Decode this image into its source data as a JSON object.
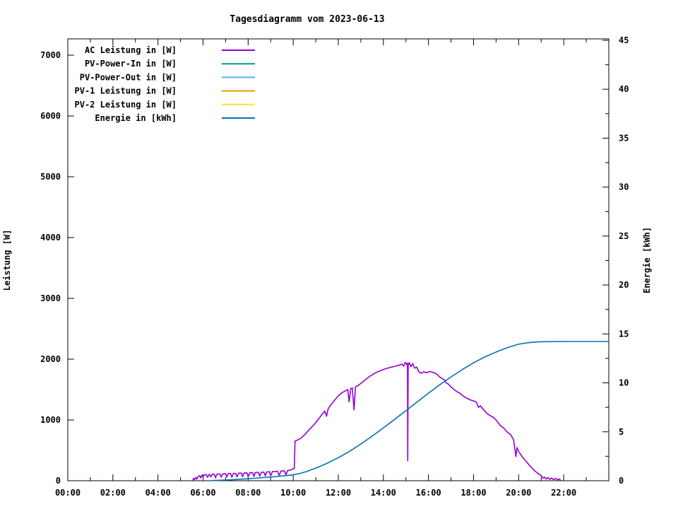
{
  "chart_data": {
    "type": "line",
    "title": "Tagesdiagramm vom 2023-06-13",
    "background_color": "#ffffff",
    "axis_color": "#000000",
    "legend_position": "top-left-inside",
    "x_axis": {
      "range_hours": [
        0,
        24
      ],
      "major_tick_step_hours": 2,
      "minor_tick_step_hours": 1,
      "tick_hours": [
        0,
        2,
        4,
        6,
        8,
        10,
        12,
        14,
        16,
        18,
        20,
        22
      ],
      "tick_labels": [
        "00:00",
        "02:00",
        "04:00",
        "06:00",
        "08:00",
        "10:00",
        "12:00",
        "14:00",
        "16:00",
        "18:00",
        "20:00",
        "22:00"
      ]
    },
    "y_axis": {
      "label": "Leistung [W]",
      "range": [
        0,
        7270
      ],
      "ticks": [
        0,
        1000,
        2000,
        3000,
        4000,
        5000,
        6000,
        7000
      ],
      "tick_labels": [
        "0",
        "1000",
        "2000",
        "3000",
        "4000",
        "5000",
        "6000",
        "7000"
      ]
    },
    "y2_axis": {
      "label": "Energie [kWh]",
      "range": [
        0,
        45.1
      ],
      "ticks": [
        0,
        5,
        10,
        15,
        20,
        25,
        30,
        35,
        40,
        45
      ],
      "tick_labels": [
        "0",
        "5",
        "10",
        "15",
        "20",
        "25",
        "30",
        "35",
        "40",
        "45"
      ],
      "minor_tick_step": 2.5
    },
    "series": [
      {
        "name": "AC Leistung in [W]",
        "color": "#9400D3",
        "axis": "left",
        "points": [
          [
            5.55,
            10
          ],
          [
            5.58,
            40
          ],
          [
            5.62,
            20
          ],
          [
            5.68,
            55
          ],
          [
            5.72,
            25
          ],
          [
            5.78,
            70
          ],
          [
            5.85,
            85
          ],
          [
            5.9,
            45
          ],
          [
            5.95,
            90
          ],
          [
            6.0,
            65
          ],
          [
            6.05,
            95
          ],
          [
            6.15,
            100
          ],
          [
            6.2,
            55
          ],
          [
            6.28,
            105
          ],
          [
            6.35,
            65
          ],
          [
            6.42,
            108
          ],
          [
            6.5,
            104
          ],
          [
            6.55,
            48
          ],
          [
            6.62,
            110
          ],
          [
            6.75,
            112
          ],
          [
            6.8,
            58
          ],
          [
            6.88,
            113
          ],
          [
            7.0,
            116
          ],
          [
            7.05,
            62
          ],
          [
            7.12,
            118
          ],
          [
            7.22,
            119
          ],
          [
            7.28,
            58
          ],
          [
            7.35,
            121
          ],
          [
            7.45,
            120
          ],
          [
            7.5,
            62
          ],
          [
            7.58,
            124
          ],
          [
            7.7,
            125
          ],
          [
            7.75,
            66
          ],
          [
            7.82,
            127
          ],
          [
            7.95,
            129
          ],
          [
            8.0,
            70
          ],
          [
            8.08,
            131
          ],
          [
            8.2,
            133
          ],
          [
            8.26,
            72
          ],
          [
            8.32,
            135
          ],
          [
            8.45,
            137
          ],
          [
            8.52,
            76
          ],
          [
            8.58,
            139
          ],
          [
            8.7,
            141
          ],
          [
            8.76,
            80
          ],
          [
            8.82,
            144
          ],
          [
            8.95,
            147
          ],
          [
            9.0,
            82
          ],
          [
            9.08,
            150
          ],
          [
            9.2,
            152
          ],
          [
            9.3,
            155
          ],
          [
            9.38,
            88
          ],
          [
            9.45,
            158
          ],
          [
            9.6,
            162
          ],
          [
            9.68,
            98
          ],
          [
            9.75,
            166
          ],
          [
            9.85,
            172
          ],
          [
            9.95,
            186
          ],
          [
            10.05,
            205
          ],
          [
            10.08,
            650
          ],
          [
            10.2,
            672
          ],
          [
            10.35,
            700
          ],
          [
            10.5,
            755
          ],
          [
            10.65,
            815
          ],
          [
            10.8,
            872
          ],
          [
            10.95,
            935
          ],
          [
            11.1,
            1005
          ],
          [
            11.25,
            1075
          ],
          [
            11.4,
            1145
          ],
          [
            11.48,
            1060
          ],
          [
            11.55,
            1185
          ],
          [
            11.7,
            1262
          ],
          [
            11.85,
            1330
          ],
          [
            12.0,
            1395
          ],
          [
            12.15,
            1445
          ],
          [
            12.3,
            1475
          ],
          [
            12.42,
            1500
          ],
          [
            12.48,
            1295
          ],
          [
            12.55,
            1515
          ],
          [
            12.62,
            1528
          ],
          [
            12.7,
            1165
          ],
          [
            12.76,
            1540
          ],
          [
            12.9,
            1572
          ],
          [
            13.05,
            1615
          ],
          [
            13.2,
            1660
          ],
          [
            13.35,
            1705
          ],
          [
            13.5,
            1742
          ],
          [
            13.65,
            1775
          ],
          [
            13.8,
            1800
          ],
          [
            13.95,
            1822
          ],
          [
            14.1,
            1842
          ],
          [
            14.25,
            1858
          ],
          [
            14.4,
            1872
          ],
          [
            14.55,
            1885
          ],
          [
            14.7,
            1902
          ],
          [
            14.82,
            1918
          ],
          [
            14.9,
            1885
          ],
          [
            14.97,
            1945
          ],
          [
            15.03,
            1912
          ],
          [
            15.07,
            1935
          ],
          [
            15.08,
            330
          ],
          [
            15.1,
            1898
          ],
          [
            15.15,
            1942
          ],
          [
            15.22,
            1875
          ],
          [
            15.3,
            1928
          ],
          [
            15.38,
            1852
          ],
          [
            15.48,
            1868
          ],
          [
            15.58,
            1788
          ],
          [
            15.68,
            1768
          ],
          [
            15.8,
            1792
          ],
          [
            15.92,
            1775
          ],
          [
            16.05,
            1798
          ],
          [
            16.2,
            1782
          ],
          [
            16.35,
            1760
          ],
          [
            16.5,
            1705
          ],
          [
            16.62,
            1678
          ],
          [
            16.72,
            1655
          ],
          [
            16.78,
            1612
          ],
          [
            16.88,
            1590
          ],
          [
            17.0,
            1542
          ],
          [
            17.15,
            1495
          ],
          [
            17.28,
            1462
          ],
          [
            17.4,
            1438
          ],
          [
            17.52,
            1398
          ],
          [
            17.68,
            1362
          ],
          [
            17.85,
            1330
          ],
          [
            18.0,
            1312
          ],
          [
            18.12,
            1295
          ],
          [
            18.22,
            1205
          ],
          [
            18.3,
            1232
          ],
          [
            18.45,
            1165
          ],
          [
            18.6,
            1105
          ],
          [
            18.75,
            1068
          ],
          [
            18.9,
            1038
          ],
          [
            19.05,
            975
          ],
          [
            19.2,
            905
          ],
          [
            19.35,
            862
          ],
          [
            19.5,
            798
          ],
          [
            19.65,
            758
          ],
          [
            19.78,
            672
          ],
          [
            19.88,
            398
          ],
          [
            19.93,
            545
          ],
          [
            20.0,
            482
          ],
          [
            20.12,
            415
          ],
          [
            20.25,
            352
          ],
          [
            20.38,
            298
          ],
          [
            20.5,
            245
          ],
          [
            20.62,
            198
          ],
          [
            20.75,
            152
          ],
          [
            20.88,
            112
          ],
          [
            21.0,
            88
          ],
          [
            21.08,
            42
          ],
          [
            21.15,
            62
          ],
          [
            21.22,
            28
          ],
          [
            21.3,
            52
          ],
          [
            21.38,
            22
          ],
          [
            21.46,
            45
          ],
          [
            21.55,
            18
          ],
          [
            21.63,
            38
          ],
          [
            21.72,
            15
          ],
          [
            21.8,
            28
          ],
          [
            21.85,
            12
          ]
        ]
      },
      {
        "name": "PV-Power-In in [W]",
        "color": "#009E73",
        "axis": "left",
        "points": []
      },
      {
        "name": "PV-Power-Out in [W]",
        "color": "#56B4E9",
        "axis": "left",
        "points": []
      },
      {
        "name": "PV-1 Leistung in [W]",
        "color": "#E69F00",
        "axis": "left",
        "points": []
      },
      {
        "name": "PV-2 Leistung in [W]",
        "color": "#F0E442",
        "axis": "left",
        "points": []
      },
      {
        "name": "Energie in [kWh]",
        "color": "#0072B2",
        "axis": "right",
        "points": [
          [
            6.4,
            0.02
          ],
          [
            7.0,
            0.07
          ],
          [
            7.5,
            0.13
          ],
          [
            8.0,
            0.2
          ],
          [
            8.5,
            0.29
          ],
          [
            9.0,
            0.38
          ],
          [
            9.5,
            0.48
          ],
          [
            10.0,
            0.6
          ],
          [
            10.3,
            0.74
          ],
          [
            10.6,
            0.95
          ],
          [
            11.0,
            1.28
          ],
          [
            11.5,
            1.78
          ],
          [
            12.0,
            2.35
          ],
          [
            12.5,
            3.0
          ],
          [
            13.0,
            3.75
          ],
          [
            13.5,
            4.55
          ],
          [
            14.0,
            5.4
          ],
          [
            14.5,
            6.27
          ],
          [
            15.0,
            7.15
          ],
          [
            15.5,
            8.05
          ],
          [
            16.0,
            8.95
          ],
          [
            16.5,
            9.8
          ],
          [
            17.0,
            10.6
          ],
          [
            17.5,
            11.35
          ],
          [
            18.0,
            12.05
          ],
          [
            18.5,
            12.65
          ],
          [
            19.0,
            13.15
          ],
          [
            19.5,
            13.6
          ],
          [
            20.0,
            13.95
          ],
          [
            20.4,
            14.1
          ],
          [
            20.8,
            14.18
          ],
          [
            21.2,
            14.21
          ],
          [
            22.0,
            14.22
          ],
          [
            23.0,
            14.22
          ],
          [
            24.0,
            14.22
          ]
        ]
      }
    ]
  }
}
